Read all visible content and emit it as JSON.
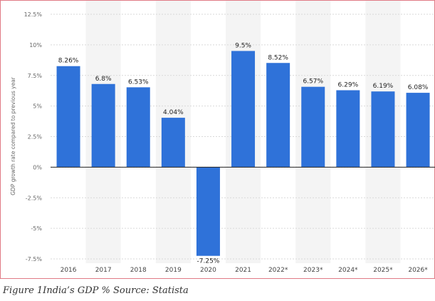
{
  "chart_data": {
    "type": "bar",
    "categories": [
      "2016",
      "2017",
      "2018",
      "2019",
      "2020",
      "2021",
      "2022*",
      "2023*",
      "2024*",
      "2025*",
      "2026*"
    ],
    "values": [
      8.26,
      6.8,
      6.53,
      4.04,
      -7.25,
      9.5,
      8.52,
      6.57,
      6.29,
      6.19,
      6.08
    ],
    "data_labels": [
      "8.26%",
      "6.8%",
      "6.53%",
      "4.04%",
      "-7.25%",
      "9.5%",
      "8.52%",
      "6.57%",
      "6.29%",
      "6.19%",
      "6.08%"
    ],
    "title": "",
    "xlabel": "",
    "ylabel": "GDP growth rate compared to previous year",
    "ylim": [
      -7.5,
      12.5
    ],
    "yticks": [
      12.5,
      10,
      7.5,
      5,
      2.5,
      0,
      -2.5,
      -5,
      -7.5
    ],
    "ytick_labels": [
      "12.5%",
      "10%",
      "7.5%",
      "5%",
      "2.5%",
      "0%",
      "-2.5%",
      "-5%",
      "-7.5%"
    ],
    "grid": true,
    "bar_color": "#2f72d9",
    "band_color": "#f4f4f4"
  },
  "caption": "Figure 1India’s GDP % Source: Statista"
}
